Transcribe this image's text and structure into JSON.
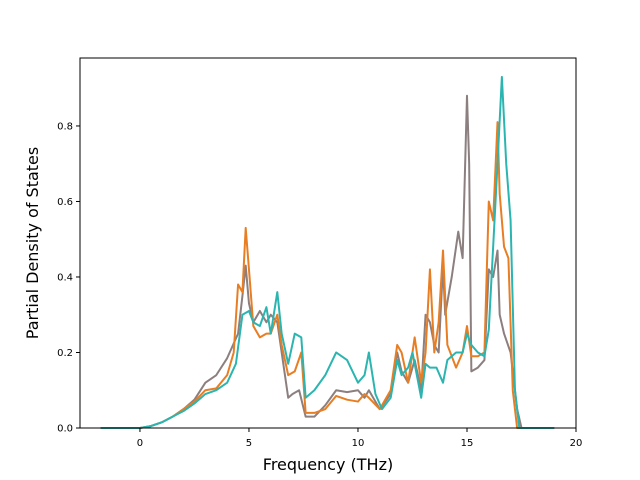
{
  "chart_data": {
    "type": "line",
    "title": "",
    "xlabel": "Frequency (THz)",
    "ylabel": "Partial Density of States",
    "xlim": [
      -2.75,
      20.0
    ],
    "ylim": [
      0.0,
      0.98
    ],
    "xticks": [
      "0",
      "5",
      "10",
      "15",
      "20"
    ],
    "yticks": [
      "0.0",
      "0.2",
      "0.4",
      "0.6",
      "0.8"
    ],
    "grid": false,
    "legend": "none",
    "series": [
      {
        "color": "#8c7f7f",
        "points": [
          [
            -1.8,
            0
          ],
          [
            0,
            0
          ],
          [
            0.5,
            0.005
          ],
          [
            1,
            0.015
          ],
          [
            1.5,
            0.03
          ],
          [
            2,
            0.05
          ],
          [
            2.5,
            0.075
          ],
          [
            3,
            0.12
          ],
          [
            3.5,
            0.14
          ],
          [
            4,
            0.185
          ],
          [
            4.5,
            0.25
          ],
          [
            4.7,
            0.35
          ],
          [
            4.85,
            0.43
          ],
          [
            5,
            0.33
          ],
          [
            5.2,
            0.28
          ],
          [
            5.5,
            0.31
          ],
          [
            5.8,
            0.28
          ],
          [
            6,
            0.3
          ],
          [
            6.3,
            0.28
          ],
          [
            6.5,
            0.2
          ],
          [
            6.8,
            0.08
          ],
          [
            7,
            0.09
          ],
          [
            7.3,
            0.1
          ],
          [
            7.6,
            0.03
          ],
          [
            8,
            0.03
          ],
          [
            8.5,
            0.06
          ],
          [
            9,
            0.1
          ],
          [
            9.5,
            0.095
          ],
          [
            10,
            0.1
          ],
          [
            10.3,
            0.08
          ],
          [
            10.5,
            0.1
          ],
          [
            10.8,
            0.07
          ],
          [
            11,
            0.05
          ],
          [
            11.5,
            0.09
          ],
          [
            11.8,
            0.2
          ],
          [
            12,
            0.15
          ],
          [
            12.3,
            0.12
          ],
          [
            12.6,
            0.18
          ],
          [
            12.9,
            0.1
          ],
          [
            13.1,
            0.3
          ],
          [
            13.3,
            0.28
          ],
          [
            13.5,
            0.22
          ],
          [
            13.7,
            0.2
          ],
          [
            13.9,
            0.43
          ],
          [
            14,
            0.3
          ],
          [
            14.3,
            0.4
          ],
          [
            14.6,
            0.52
          ],
          [
            14.8,
            0.45
          ],
          [
            15,
            0.88
          ],
          [
            15.1,
            0.7
          ],
          [
            15.2,
            0.15
          ],
          [
            15.5,
            0.16
          ],
          [
            15.8,
            0.18
          ],
          [
            16,
            0.42
          ],
          [
            16.2,
            0.4
          ],
          [
            16.4,
            0.47
          ],
          [
            16.5,
            0.3
          ],
          [
            16.7,
            0.25
          ],
          [
            17,
            0.2
          ],
          [
            17.3,
            0.05
          ],
          [
            17.5,
            0
          ],
          [
            19,
            0
          ]
        ]
      },
      {
        "color": "#e87e24",
        "points": [
          [
            -1.8,
            0
          ],
          [
            0,
            0
          ],
          [
            0.5,
            0.005
          ],
          [
            1,
            0.015
          ],
          [
            1.5,
            0.03
          ],
          [
            2,
            0.05
          ],
          [
            2.5,
            0.07
          ],
          [
            3,
            0.1
          ],
          [
            3.5,
            0.105
          ],
          [
            4,
            0.14
          ],
          [
            4.3,
            0.2
          ],
          [
            4.5,
            0.38
          ],
          [
            4.7,
            0.36
          ],
          [
            4.85,
            0.53
          ],
          [
            5,
            0.42
          ],
          [
            5.2,
            0.27
          ],
          [
            5.5,
            0.24
          ],
          [
            5.8,
            0.25
          ],
          [
            6,
            0.25
          ],
          [
            6.3,
            0.3
          ],
          [
            6.5,
            0.22
          ],
          [
            6.8,
            0.14
          ],
          [
            7.1,
            0.15
          ],
          [
            7.4,
            0.2
          ],
          [
            7.6,
            0.04
          ],
          [
            8,
            0.04
          ],
          [
            8.5,
            0.05
          ],
          [
            9,
            0.085
          ],
          [
            9.5,
            0.075
          ],
          [
            10,
            0.07
          ],
          [
            10.3,
            0.09
          ],
          [
            10.5,
            0.08
          ],
          [
            11,
            0.05
          ],
          [
            11.5,
            0.1
          ],
          [
            11.8,
            0.22
          ],
          [
            12,
            0.2
          ],
          [
            12.3,
            0.12
          ],
          [
            12.6,
            0.24
          ],
          [
            12.9,
            0.12
          ],
          [
            13.1,
            0.2
          ],
          [
            13.3,
            0.42
          ],
          [
            13.5,
            0.2
          ],
          [
            13.7,
            0.28
          ],
          [
            13.9,
            0.47
          ],
          [
            14.1,
            0.22
          ],
          [
            14.5,
            0.16
          ],
          [
            14.8,
            0.2
          ],
          [
            15,
            0.27
          ],
          [
            15.2,
            0.19
          ],
          [
            15.5,
            0.19
          ],
          [
            15.8,
            0.2
          ],
          [
            16,
            0.6
          ],
          [
            16.2,
            0.55
          ],
          [
            16.4,
            0.81
          ],
          [
            16.5,
            0.62
          ],
          [
            16.7,
            0.48
          ],
          [
            16.9,
            0.45
          ],
          [
            17.1,
            0.1
          ],
          [
            17.3,
            0
          ],
          [
            19,
            0
          ]
        ]
      },
      {
        "color": "#2bb5b0",
        "points": [
          [
            -1.8,
            0
          ],
          [
            0,
            0
          ],
          [
            0.5,
            0.005
          ],
          [
            1,
            0.015
          ],
          [
            1.5,
            0.03
          ],
          [
            2,
            0.045
          ],
          [
            2.5,
            0.065
          ],
          [
            3,
            0.09
          ],
          [
            3.5,
            0.1
          ],
          [
            4,
            0.12
          ],
          [
            4.4,
            0.17
          ],
          [
            4.7,
            0.3
          ],
          [
            5,
            0.31
          ],
          [
            5.2,
            0.28
          ],
          [
            5.5,
            0.27
          ],
          [
            5.8,
            0.32
          ],
          [
            6,
            0.25
          ],
          [
            6.3,
            0.36
          ],
          [
            6.5,
            0.25
          ],
          [
            6.8,
            0.17
          ],
          [
            7.1,
            0.25
          ],
          [
            7.4,
            0.24
          ],
          [
            7.6,
            0.08
          ],
          [
            8,
            0.1
          ],
          [
            8.5,
            0.14
          ],
          [
            9,
            0.2
          ],
          [
            9.5,
            0.18
          ],
          [
            10,
            0.12
          ],
          [
            10.3,
            0.14
          ],
          [
            10.5,
            0.2
          ],
          [
            10.8,
            0.09
          ],
          [
            11.1,
            0.05
          ],
          [
            11.5,
            0.08
          ],
          [
            11.8,
            0.18
          ],
          [
            12,
            0.14
          ],
          [
            12.3,
            0.16
          ],
          [
            12.5,
            0.2
          ],
          [
            12.9,
            0.08
          ],
          [
            13.1,
            0.17
          ],
          [
            13.3,
            0.16
          ],
          [
            13.6,
            0.16
          ],
          [
            13.9,
            0.12
          ],
          [
            14.1,
            0.18
          ],
          [
            14.5,
            0.2
          ],
          [
            14.8,
            0.2
          ],
          [
            15,
            0.25
          ],
          [
            15.2,
            0.22
          ],
          [
            15.5,
            0.2
          ],
          [
            15.8,
            0.19
          ],
          [
            16,
            0.26
          ],
          [
            16.2,
            0.48
          ],
          [
            16.4,
            0.7
          ],
          [
            16.6,
            0.93
          ],
          [
            16.8,
            0.7
          ],
          [
            17,
            0.55
          ],
          [
            17.2,
            0.1
          ],
          [
            17.4,
            0
          ],
          [
            19,
            0
          ]
        ]
      }
    ]
  }
}
